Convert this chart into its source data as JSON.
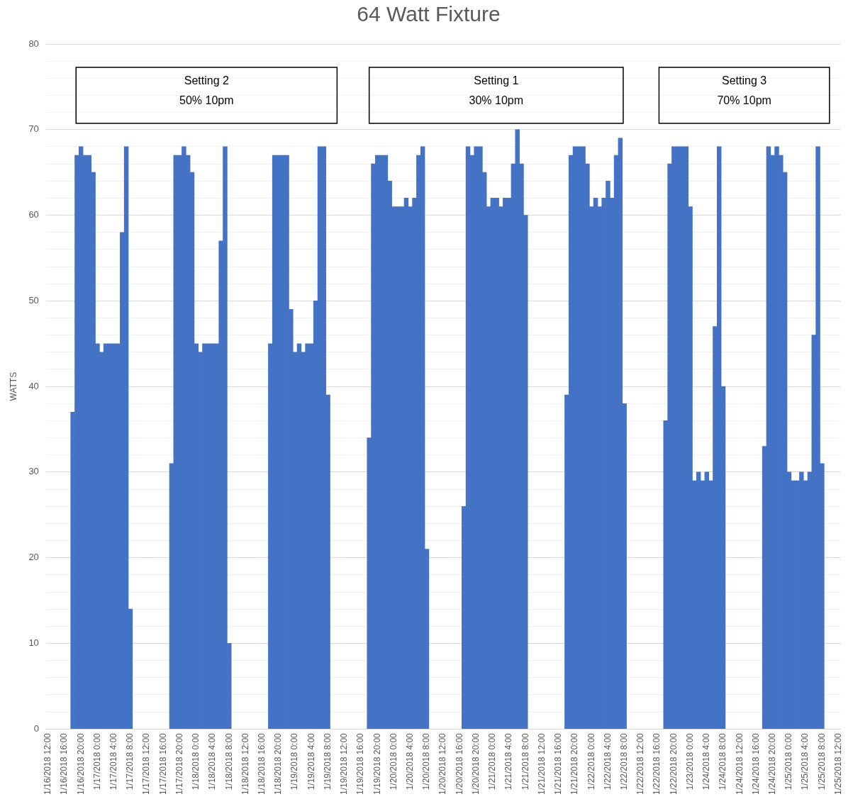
{
  "chart_data": {
    "type": "bar",
    "title": "64 Watt Fixture",
    "ylabel": "WATTS",
    "categories": [
      "1/16/2018 12:00",
      null,
      null,
      null,
      "1/16/2018 16:00",
      null,
      null,
      null,
      "1/16/2018 20:00",
      null,
      null,
      null,
      "1/17/2018 0:00",
      null,
      null,
      null,
      "1/17/2018 4:00",
      null,
      null,
      null,
      "1/17/2018 8:00",
      null,
      null,
      null,
      "1/17/2018 12:00",
      null,
      null,
      null,
      "1/17/2018 16:00",
      null,
      null,
      null,
      "1/17/2018 20:00",
      null,
      null,
      null,
      "1/18/2018 0:00",
      null,
      null,
      null,
      "1/18/2018 4:00",
      null,
      null,
      null,
      "1/18/2018 8:00",
      null,
      null,
      null,
      "1/18/2018 12:00",
      null,
      null,
      null,
      "1/18/2018 16:00",
      null,
      null,
      null,
      "1/18/2018 20:00",
      null,
      null,
      null,
      "1/19/2018 0:00",
      null,
      null,
      null,
      "1/19/2018 4:00",
      null,
      null,
      null,
      "1/19/2018 8:00",
      null,
      null,
      null,
      "1/19/2018 12:00",
      null,
      null,
      null,
      "1/19/2018 16:00",
      null,
      null,
      null,
      "1/19/2018 20:00",
      null,
      null,
      null,
      "1/20/2018 0:00",
      null,
      null,
      null,
      "1/20/2018 4:00",
      null,
      null,
      null,
      "1/20/2018 8:00",
      null,
      null,
      null,
      "1/20/2018 12:00",
      null,
      null,
      null,
      "1/20/2018 16:00",
      null,
      null,
      null,
      "1/20/2018 20:00",
      null,
      null,
      null,
      "1/21/2018 0:00",
      null,
      null,
      null,
      "1/21/2018 4:00",
      null,
      null,
      null,
      "1/21/2018 8:00",
      null,
      null,
      null,
      "1/21/2018 12:00",
      null,
      null,
      null,
      "1/21/2018 16:00",
      null,
      null,
      null,
      "1/21/2018 20:00",
      null,
      null,
      null,
      "1/22/2018 0:00",
      null,
      null,
      null,
      "1/22/2018 4:00",
      null,
      null,
      null,
      "1/22/2018 8:00",
      null,
      null,
      null,
      "1/22/2018 12:00",
      null,
      null,
      null,
      "1/22/2018 16:00",
      null,
      null,
      null,
      "1/22/2018 20:00",
      null,
      null,
      null,
      "1/23/2018 0:00",
      null,
      null,
      null,
      "1/24/2018 4:00",
      null,
      null,
      null,
      "1/24/2018 8:00",
      null,
      null,
      null,
      "1/24/2018 12:00",
      null,
      null,
      null,
      "1/24/2018 16:00",
      null,
      null,
      null,
      "1/24/2018 20:00",
      null,
      null,
      null,
      "1/25/2018 0:00",
      null,
      null,
      null,
      "1/25/2018 4:00",
      null,
      null,
      null,
      "1/25/2018 8:00",
      null,
      null,
      null,
      "1/25/2018 12:00"
    ],
    "series": [
      {
        "color": "#4472c4",
        "values": [
          null,
          null,
          null,
          null,
          null,
          null,
          37,
          67,
          68,
          67,
          67,
          65,
          45,
          44,
          45,
          45,
          45,
          45,
          58,
          68,
          14,
          null,
          null,
          null,
          null,
          null,
          null,
          null,
          null,
          null,
          31,
          67,
          67,
          68,
          67,
          65,
          45,
          44,
          45,
          45,
          45,
          45,
          57,
          68,
          10,
          null,
          null,
          null,
          null,
          null,
          null,
          null,
          null,
          null,
          45,
          67,
          67,
          67,
          67,
          49,
          44,
          45,
          44,
          45,
          45,
          50,
          68,
          68,
          39,
          null,
          null,
          null,
          null,
          null,
          null,
          null,
          null,
          null,
          34,
          66,
          67,
          67,
          67,
          64,
          61,
          61,
          61,
          62,
          61,
          62,
          67,
          68,
          21,
          null,
          null,
          null,
          null,
          null,
          null,
          null,
          null,
          26,
          68,
          67,
          68,
          68,
          65,
          61,
          62,
          62,
          61,
          62,
          62,
          66,
          70,
          66,
          60,
          null,
          null,
          null,
          null,
          null,
          null,
          null,
          null,
          null,
          39,
          67,
          68,
          68,
          68,
          66,
          61,
          62,
          61,
          62,
          64,
          62,
          67,
          69,
          38,
          null,
          null,
          null,
          null,
          null,
          null,
          null,
          null,
          null,
          36,
          66,
          68,
          68,
          68,
          68,
          61,
          29,
          30,
          29,
          30,
          29,
          47,
          68,
          40,
          null,
          null,
          null,
          null,
          null,
          null,
          null,
          null,
          null,
          33,
          68,
          67,
          68,
          67,
          65,
          30,
          29,
          29,
          30,
          29,
          30,
          46,
          68,
          31,
          null,
          null,
          null,
          null
        ]
      }
    ],
    "ylim": [
      0,
      80
    ],
    "yticks": [
      0,
      {
        "value": 2,
        "label": null
      },
      {
        "value": 4,
        "label": null
      },
      {
        "value": 6,
        "label": null
      },
      {
        "value": 8,
        "label": null
      },
      10,
      {
        "value": 12,
        "label": null
      },
      {
        "value": 14,
        "label": null
      },
      {
        "value": 16,
        "label": null
      },
      {
        "value": 18,
        "label": null
      },
      20,
      {
        "value": 22,
        "label": null
      },
      {
        "value": 24,
        "label": null
      },
      {
        "value": 26,
        "label": null
      },
      {
        "value": 28,
        "label": null
      },
      30,
      {
        "value": 32,
        "label": null
      },
      {
        "value": 34,
        "label": null
      },
      {
        "value": 36,
        "label": null
      },
      {
        "value": 38,
        "label": null
      },
      40,
      {
        "value": 42,
        "label": null
      },
      {
        "value": 44,
        "label": null
      },
      {
        "value": 46,
        "label": null
      },
      {
        "value": 48,
        "label": null
      },
      50,
      {
        "value": 52,
        "label": null
      },
      {
        "value": 54,
        "label": null
      },
      {
        "value": 56,
        "label": null
      },
      {
        "value": 58,
        "label": null
      },
      60,
      {
        "value": 62,
        "label": null
      },
      {
        "value": 64,
        "label": null
      },
      {
        "value": 66,
        "label": null
      },
      {
        "value": 68,
        "label": null
      },
      70,
      {
        "value": 72,
        "label": null
      },
      {
        "value": 74,
        "label": null
      },
      {
        "value": 76,
        "label": null
      },
      {
        "value": 78,
        "label": null
      },
      80
    ],
    "grid": "y",
    "legend": false,
    "annotations": [
      "Setting 2\n50% 10pm",
      "Setting 1\n30% 10pm",
      "Setting 3\n70% 10pm"
    ]
  }
}
